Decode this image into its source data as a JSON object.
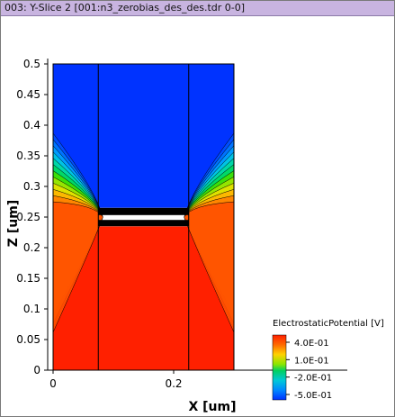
{
  "window": {
    "title": "003: Y-Slice 2 [001:n3_zerobias_des_des.tdr 0-0]"
  },
  "chart_data": {
    "type": "heatmap",
    "xlabel": "X [um]",
    "ylabel": "Z [um]",
    "xlim": [
      0,
      0.3
    ],
    "ylim": [
      0,
      0.5
    ],
    "x_ticks": [
      "0",
      "0.2"
    ],
    "y_ticks": [
      "0",
      "0.05",
      "0.1",
      "0.15",
      "0.2",
      "0.25",
      "0.3",
      "0.35",
      "0.4",
      "0.45",
      "0.5"
    ],
    "legend": {
      "title": "ElectrostaticPotential [V]",
      "labels": [
        "4.0E-01",
        "1.0E-01",
        "-2.0E-01",
        "-5.0E-01"
      ],
      "max": 0.4,
      "min": -0.5
    },
    "region_dividers_x": [
      0.075,
      0.225
    ],
    "oxide_band_z": [
      0.235,
      0.265
    ],
    "values": {
      "top_region": -0.5,
      "bottom_region": 0.4
    },
    "colors": {
      "high": "#ff2000",
      "low": "#0033ff"
    }
  }
}
